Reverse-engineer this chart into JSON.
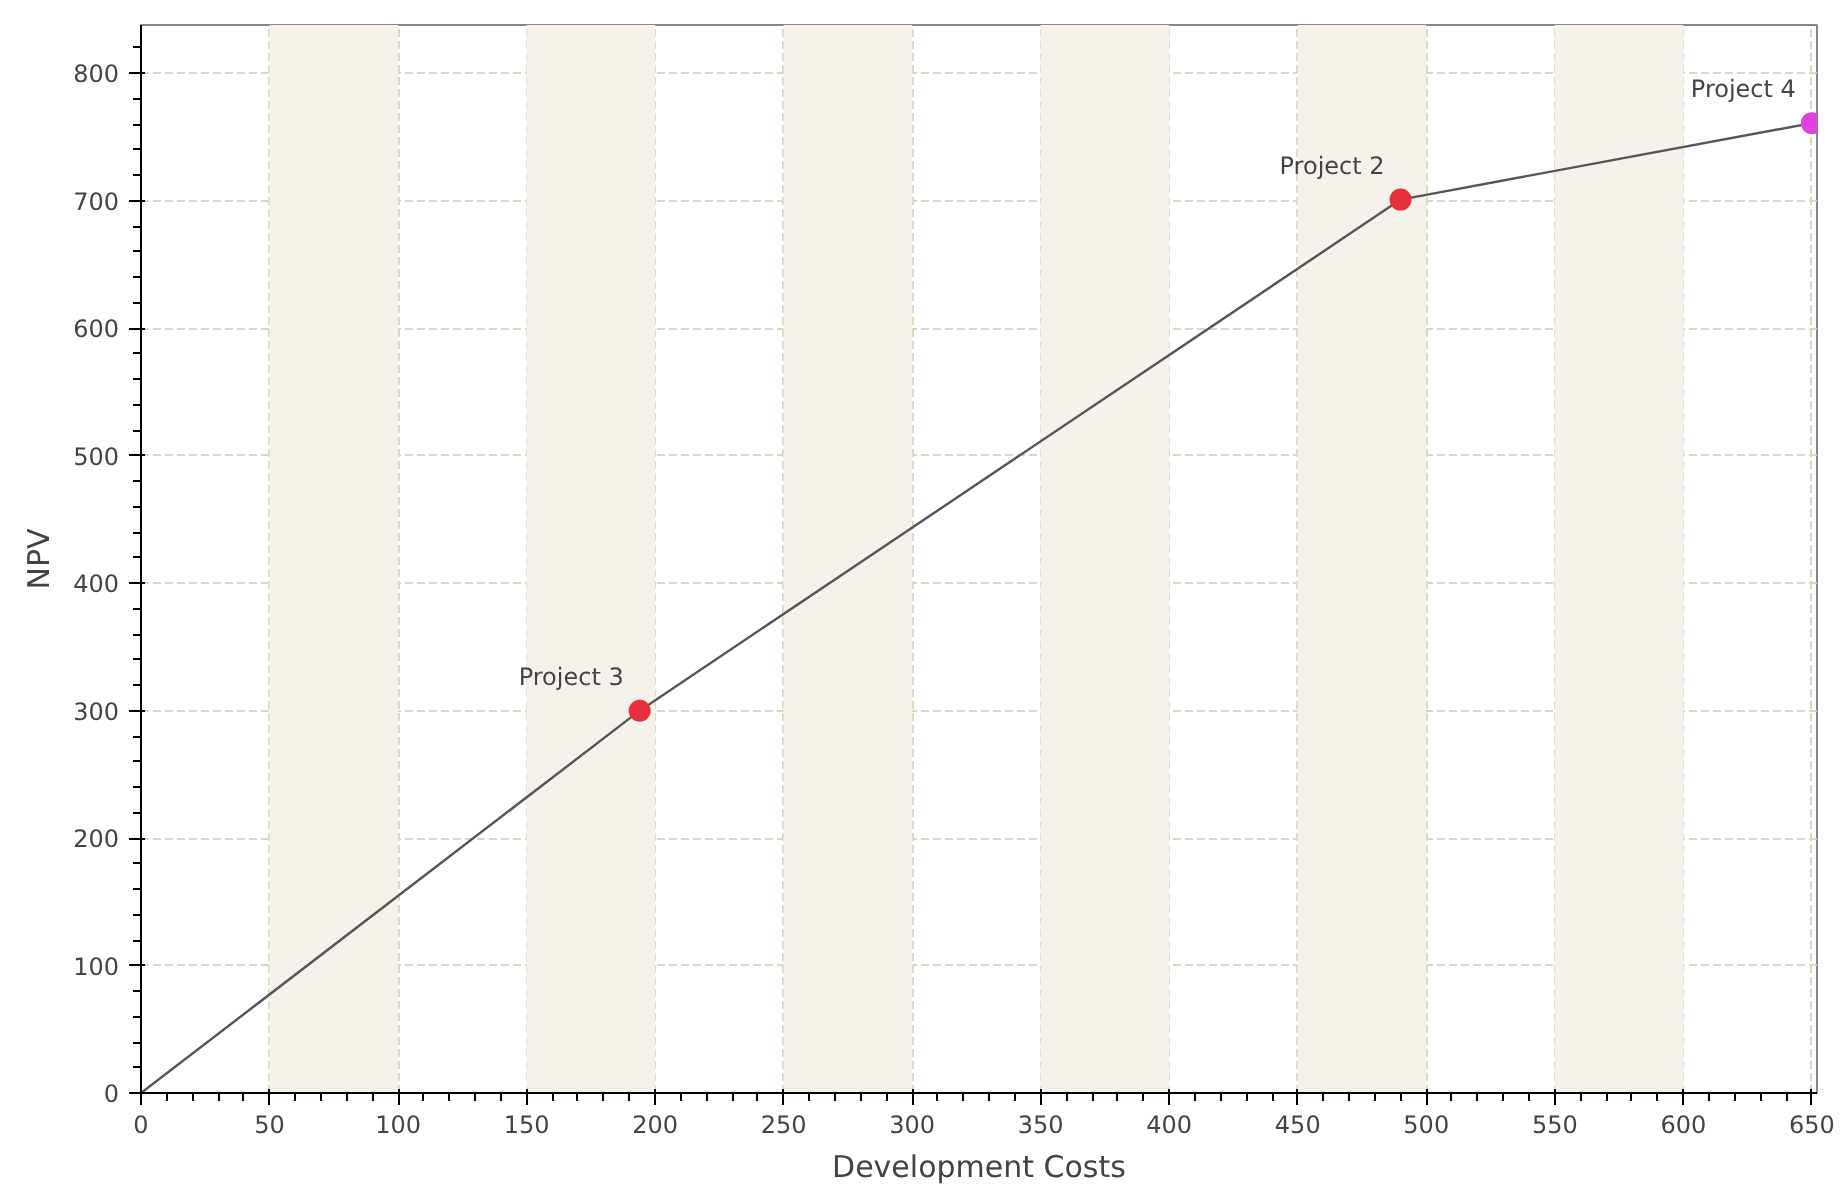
{
  "chart_data": {
    "type": "line",
    "xlabel": "Development Costs",
    "ylabel": "NPV",
    "xlim": [
      0,
      652
    ],
    "ylim": [
      0,
      838
    ],
    "xticks": [
      0,
      50,
      100,
      150,
      200,
      250,
      300,
      350,
      400,
      450,
      500,
      550,
      600,
      650
    ],
    "yticks": [
      0,
      100,
      200,
      300,
      400,
      500,
      600,
      700,
      800
    ],
    "grid": true,
    "line_style": "solid",
    "series": [
      {
        "color": "#555555",
        "x": [
          0,
          194,
          490,
          650
        ],
        "values": [
          0,
          300,
          701,
          761
        ]
      },
      {
        "type": "scatter",
        "marker": "circle",
        "colors": [
          "#e8303c",
          "#e8303c",
          "#e040e0"
        ],
        "x": [
          194,
          490,
          650
        ],
        "values": [
          300,
          701,
          761
        ]
      }
    ],
    "bands": [
      {
        "axis": "x",
        "from": 50,
        "to": 100,
        "color": "#f6f1ea"
      },
      {
        "axis": "x",
        "from": 150,
        "to": 200,
        "color": "#f6f1ea"
      },
      {
        "axis": "x",
        "from": 250,
        "to": 300,
        "color": "#f6f1ea"
      },
      {
        "axis": "x",
        "from": 350,
        "to": 400,
        "color": "#f6f1ea"
      },
      {
        "axis": "x",
        "from": 450,
        "to": 500,
        "color": "#f6f1ea"
      },
      {
        "axis": "x",
        "from": 550,
        "to": 600,
        "color": "#f6f1ea"
      }
    ],
    "annotations": [
      {
        "text": "Project 3",
        "x": 194,
        "y": 300
      },
      {
        "text": "Project 2",
        "x": 490,
        "y": 701
      },
      {
        "text": "Project 4",
        "x": 650,
        "y": 761
      }
    ]
  }
}
